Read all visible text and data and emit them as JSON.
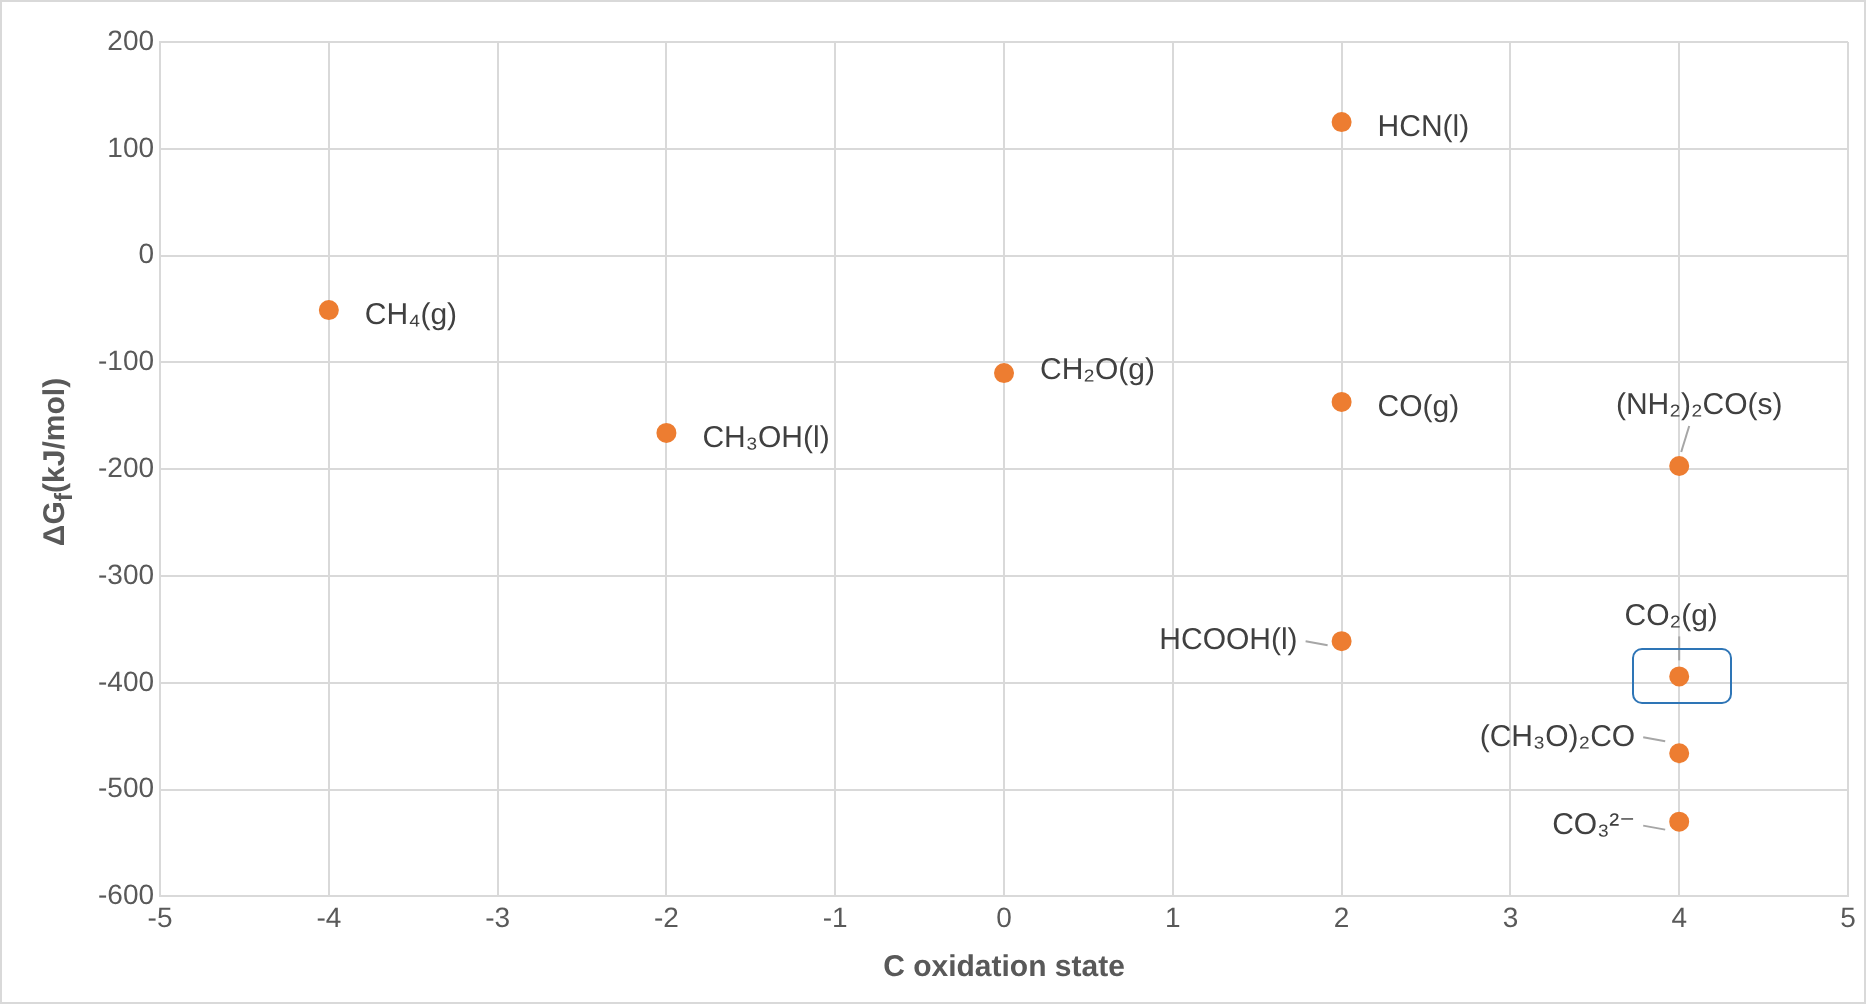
{
  "chart_data": {
    "type": "scatter",
    "xlabel": "C oxidation state",
    "ylabel": "ΔG$_{f}$(kJ/mol)",
    "x": [
      -4,
      -2,
      0,
      2,
      2,
      2,
      4,
      4,
      4,
      4
    ],
    "values": [
      -51,
      -166,
      -110,
      125,
      -137,
      -361,
      -197,
      -394,
      -466,
      -530
    ],
    "color": "#ed7d31",
    "marker": "circle",
    "xlim": [
      -5,
      5
    ],
    "xticks": [
      -5,
      -4,
      -3,
      -2,
      -1,
      0,
      1,
      2,
      3,
      4,
      5
    ],
    "ylim": [
      -600,
      200
    ],
    "yticks": [
      -600,
      -500,
      -400,
      -300,
      -200,
      -100,
      0,
      100,
      200
    ],
    "grid": true,
    "legend": false,
    "annotations": [
      {
        "text": "CH₄(g)",
        "x": -4,
        "y": -51
      },
      {
        "text": "CH₃OH(l)",
        "x": -2,
        "y": -166
      },
      {
        "text": "CH₂O(g)",
        "x": 0,
        "y": -110
      },
      {
        "text": "HCN(l)",
        "x": 2,
        "y": 125
      },
      {
        "text": "CO(g)",
        "x": 2,
        "y": -137
      },
      {
        "text": "HCOOH(l)",
        "x": 2,
        "y": -361
      },
      {
        "text": "(NH₂)₂CO(s)",
        "x": 4,
        "y": -197
      },
      {
        "text": "CO₂(g)",
        "x": 4,
        "y": -394
      },
      {
        "text": "(CH₃O)₂CO",
        "x": 4,
        "y": -466
      },
      {
        "text": "CO₃²⁻",
        "x": 4,
        "y": -530
      }
    ]
  }
}
